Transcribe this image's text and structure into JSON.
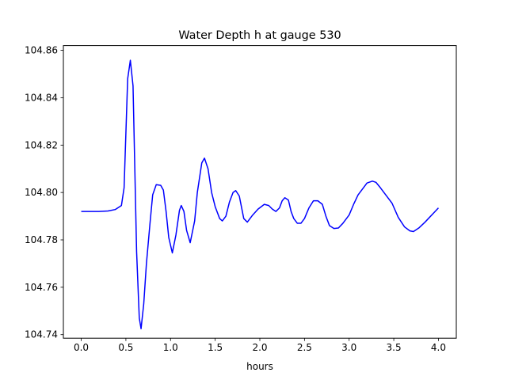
{
  "chart_data": {
    "type": "line",
    "title": "Water Depth h at gauge 530",
    "xlabel": "hours",
    "ylabel": "",
    "xlim": [
      -0.2,
      4.2
    ],
    "ylim": [
      104.7385,
      104.862
    ],
    "x_ticks": [
      0.0,
      0.5,
      1.0,
      1.5,
      2.0,
      2.5,
      3.0,
      3.5,
      4.0
    ],
    "x_tick_labels": [
      "0.0",
      "0.5",
      "1.0",
      "1.5",
      "2.0",
      "2.5",
      "3.0",
      "3.5",
      "4.0"
    ],
    "y_ticks": [
      104.74,
      104.76,
      104.78,
      104.8,
      104.82,
      104.84,
      104.86
    ],
    "y_tick_labels": [
      "104.74",
      "104.76",
      "104.78",
      "104.80",
      "104.82",
      "104.84",
      "104.86"
    ],
    "grid": false,
    "series": [
      {
        "color": "#0000ff",
        "points": [
          [
            0.0,
            104.792
          ],
          [
            0.1,
            104.792
          ],
          [
            0.2,
            104.792
          ],
          [
            0.3,
            104.7922
          ],
          [
            0.38,
            104.7928
          ],
          [
            0.45,
            104.7945
          ],
          [
            0.48,
            104.802
          ],
          [
            0.5,
            104.825
          ],
          [
            0.52,
            104.848
          ],
          [
            0.55,
            104.8558
          ],
          [
            0.58,
            104.845
          ],
          [
            0.6,
            104.81
          ],
          [
            0.62,
            104.775
          ],
          [
            0.65,
            104.747
          ],
          [
            0.67,
            104.7425
          ],
          [
            0.7,
            104.753
          ],
          [
            0.73,
            104.77
          ],
          [
            0.77,
            104.787
          ],
          [
            0.8,
            104.799
          ],
          [
            0.84,
            104.8033
          ],
          [
            0.89,
            104.803
          ],
          [
            0.92,
            104.801
          ],
          [
            0.95,
            104.792
          ],
          [
            0.98,
            104.781
          ],
          [
            1.02,
            104.7745
          ],
          [
            1.06,
            104.782
          ],
          [
            1.1,
            104.7925
          ],
          [
            1.12,
            104.7945
          ],
          [
            1.15,
            104.792
          ],
          [
            1.18,
            104.784
          ],
          [
            1.22,
            104.7788
          ],
          [
            1.27,
            104.788
          ],
          [
            1.3,
            104.8
          ],
          [
            1.35,
            104.8125
          ],
          [
            1.38,
            104.8145
          ],
          [
            1.42,
            104.81
          ],
          [
            1.46,
            104.8
          ],
          [
            1.5,
            104.794
          ],
          [
            1.55,
            104.789
          ],
          [
            1.58,
            104.788
          ],
          [
            1.62,
            104.79
          ],
          [
            1.66,
            104.796
          ],
          [
            1.7,
            104.8
          ],
          [
            1.73,
            104.8008
          ],
          [
            1.77,
            104.7985
          ],
          [
            1.82,
            104.789
          ],
          [
            1.86,
            104.7875
          ],
          [
            1.92,
            104.7905
          ],
          [
            1.98,
            104.793
          ],
          [
            2.05,
            104.795
          ],
          [
            2.1,
            104.7945
          ],
          [
            2.14,
            104.793
          ],
          [
            2.18,
            104.792
          ],
          [
            2.22,
            104.7935
          ],
          [
            2.25,
            104.7965
          ],
          [
            2.28,
            104.7978
          ],
          [
            2.32,
            104.7968
          ],
          [
            2.35,
            104.792
          ],
          [
            2.38,
            104.789
          ],
          [
            2.42,
            104.787
          ],
          [
            2.46,
            104.787
          ],
          [
            2.5,
            104.789
          ],
          [
            2.55,
            104.7935
          ],
          [
            2.6,
            104.7965
          ],
          [
            2.65,
            104.7965
          ],
          [
            2.7,
            104.795
          ],
          [
            2.74,
            104.79
          ],
          [
            2.78,
            104.786
          ],
          [
            2.83,
            104.7848
          ],
          [
            2.88,
            104.785
          ],
          [
            2.93,
            104.787
          ],
          [
            3.0,
            104.7905
          ],
          [
            3.05,
            104.795
          ],
          [
            3.1,
            104.799
          ],
          [
            3.15,
            104.8015
          ],
          [
            3.2,
            104.804
          ],
          [
            3.26,
            104.8048
          ],
          [
            3.3,
            104.8043
          ],
          [
            3.35,
            104.802
          ],
          [
            3.4,
            104.7995
          ],
          [
            3.48,
            104.7955
          ],
          [
            3.55,
            104.7895
          ],
          [
            3.62,
            104.7855
          ],
          [
            3.68,
            104.7838
          ],
          [
            3.72,
            104.7835
          ],
          [
            3.78,
            104.785
          ],
          [
            3.85,
            104.7875
          ],
          [
            3.9,
            104.7895
          ],
          [
            3.95,
            104.7915
          ],
          [
            4.0,
            104.7935
          ]
        ]
      }
    ]
  }
}
